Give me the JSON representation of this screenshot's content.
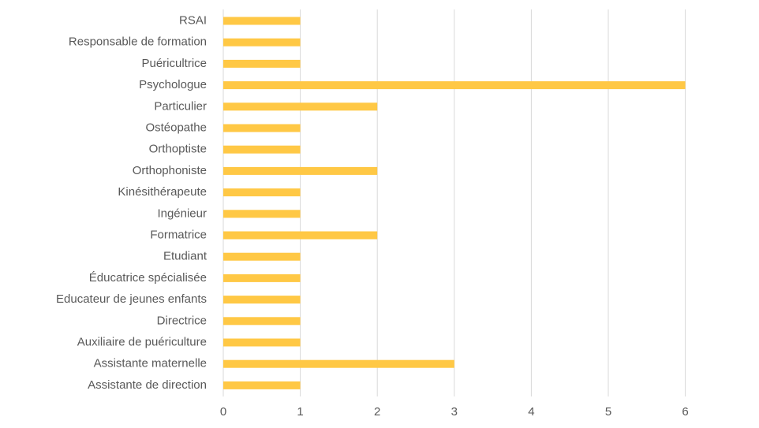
{
  "chart_data": {
    "type": "bar",
    "orientation": "horizontal",
    "title": "",
    "xlabel": "",
    "ylabel": "",
    "categories": [
      "RSAI",
      "Responsable de formation",
      "Puéricultrice",
      "Psychologue",
      "Particulier",
      "Ostéopathe",
      "Orthoptiste",
      "Orthophoniste",
      "Kinésithérapeute",
      "Ingénieur",
      "Formatrice",
      "Etudiant",
      "Éducatrice spécialisée",
      "Educateur de jeunes enfants",
      "Directrice",
      "Auxiliaire de puériculture",
      "Assistante maternelle",
      "Assistante de direction"
    ],
    "values": [
      1,
      1,
      1,
      6,
      2,
      1,
      1,
      2,
      1,
      1,
      2,
      1,
      1,
      1,
      1,
      1,
      3,
      1
    ],
    "xlim": [
      0,
      6
    ],
    "xticks": [
      "0",
      "1",
      "2",
      "3",
      "4",
      "5",
      "6"
    ],
    "grid": "vertical",
    "legend": "none",
    "colors": {
      "bar": "#FFC845",
      "grid": "#D9D9D9",
      "text": "#595959"
    }
  }
}
